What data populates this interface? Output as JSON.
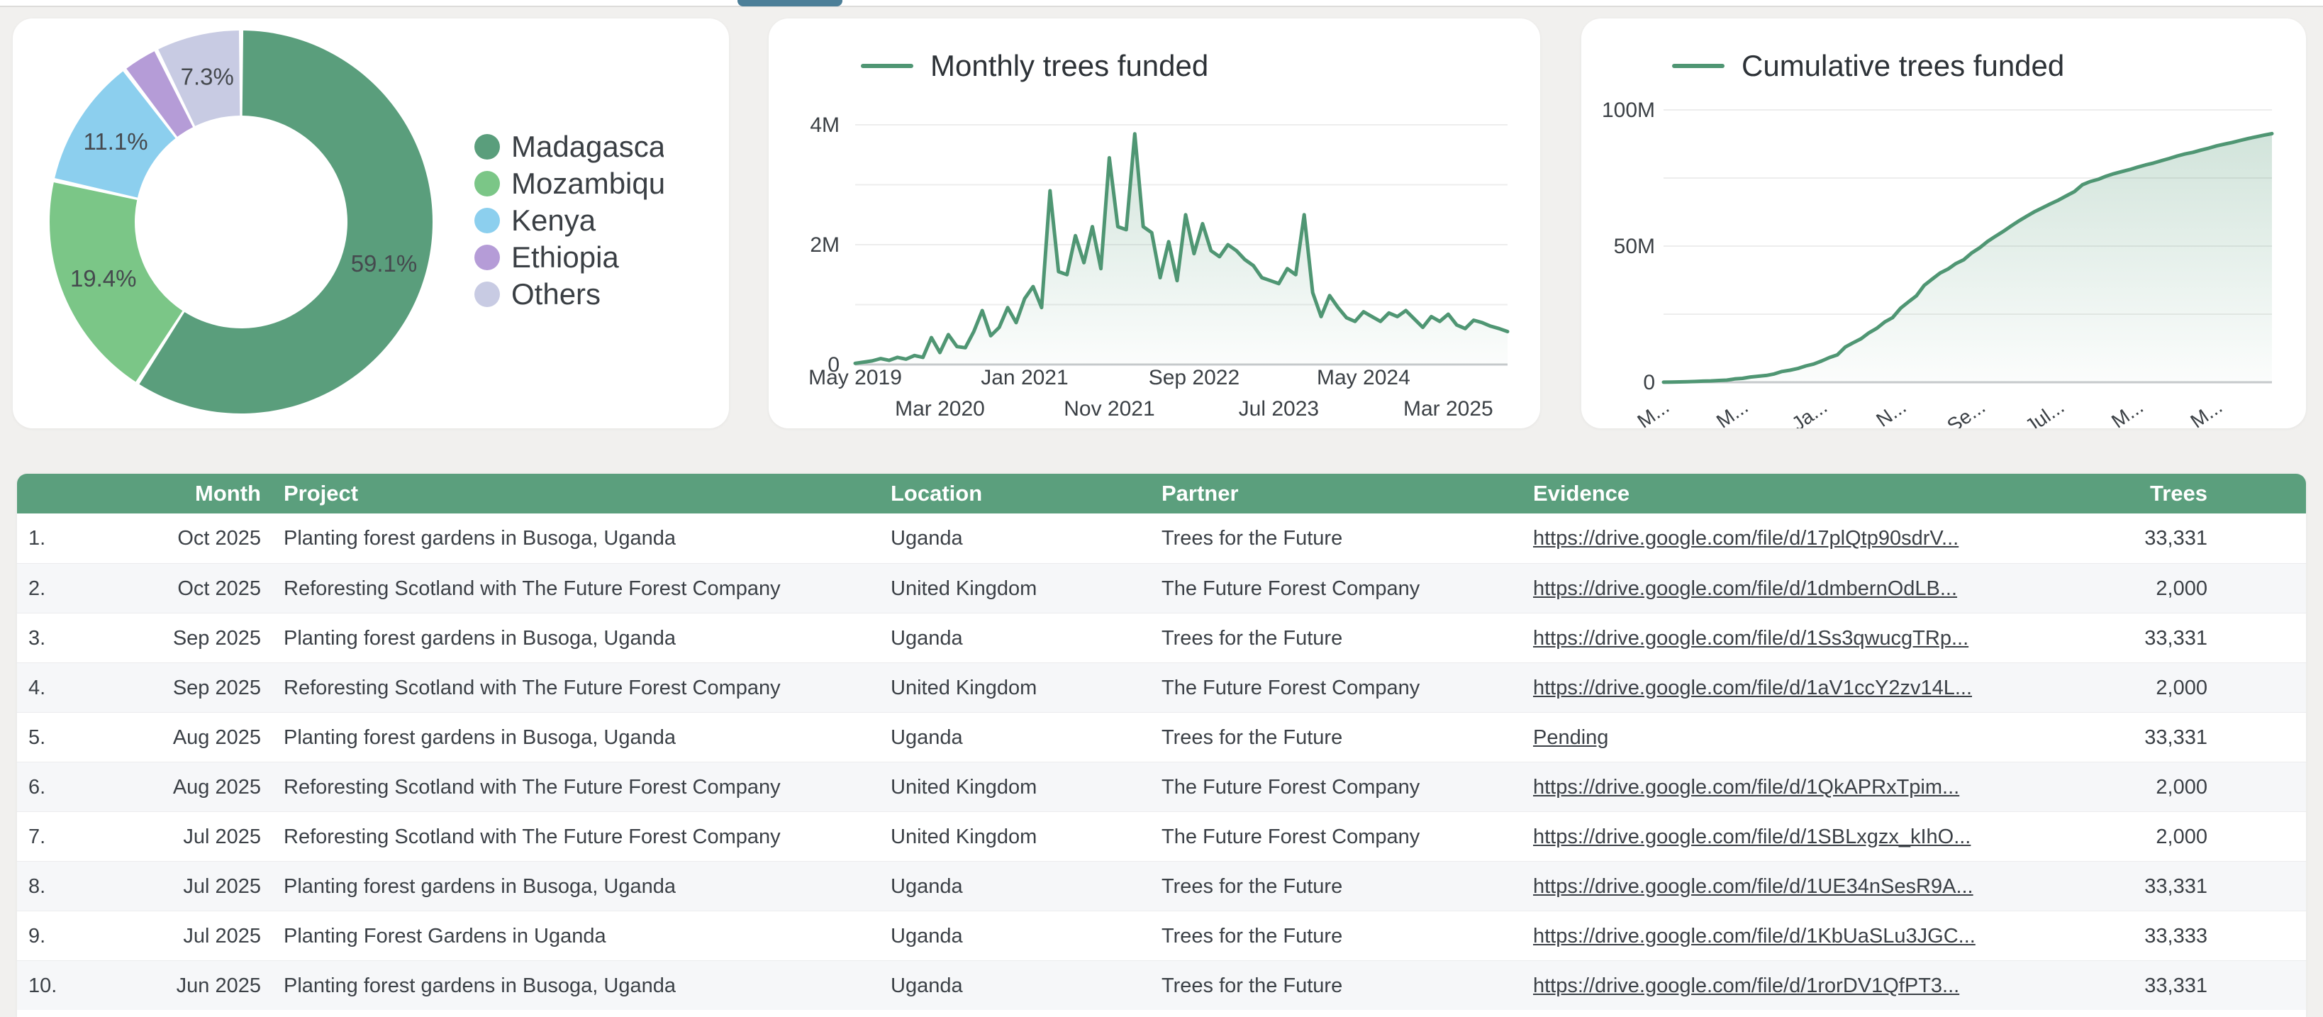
{
  "page": {
    "tab_indicator_color": "#4c7f98",
    "background": "#f1f0ee"
  },
  "colors": {
    "accent_green": "#4f9673",
    "table_header_green": "#5b9f7d",
    "grid_line": "#ededed",
    "axis_base_line": "#c7cacc",
    "axis_text": "#3b4045"
  },
  "chart_data": [
    {
      "type": "pie",
      "subtype": "donut",
      "legend_position": "right",
      "labels": [
        "Madagascar",
        "Mozambique",
        "Kenya",
        "Ethiopia",
        "Others"
      ],
      "values_pct": [
        59.1,
        19.4,
        11.1,
        3.1,
        7.3
      ],
      "slice_labels": [
        "59.1%",
        "19.4%",
        "11.1%",
        "",
        "7.3%"
      ],
      "colors": [
        "#5a9e7c",
        "#7bc687",
        "#8ccfee",
        "#b59cd7",
        "#c8cbe3"
      ]
    },
    {
      "type": "line",
      "title": "Monthly trees funded",
      "line_color": "#4f9673",
      "x_unit": "month",
      "x_start": "May 2019",
      "x_end": "Oct 2025",
      "ylim": [
        0,
        4000000
      ],
      "grid_step": 1000000,
      "yticks": [
        {
          "label": "0",
          "value_millions": 0
        },
        {
          "label": "2M",
          "value_millions": 2
        },
        {
          "label": "4M",
          "value_millions": 4
        }
      ],
      "xticks_row1": [
        {
          "label": "May 2019",
          "month_index": 0
        },
        {
          "label": "Jan 2021",
          "month_index": 20
        },
        {
          "label": "Sep 2022",
          "month_index": 40
        },
        {
          "label": "May 2024",
          "month_index": 60
        }
      ],
      "xticks_row2": [
        {
          "label": "Mar 2020",
          "month_index": 10
        },
        {
          "label": "Nov 2021",
          "month_index": 30
        },
        {
          "label": "Jul 2023",
          "month_index": 50
        },
        {
          "label": "Mar 2025",
          "month_index": 70
        }
      ],
      "values_millions": [
        0.02,
        0.04,
        0.06,
        0.1,
        0.07,
        0.12,
        0.09,
        0.15,
        0.12,
        0.45,
        0.2,
        0.5,
        0.3,
        0.28,
        0.55,
        0.9,
        0.48,
        0.62,
        0.95,
        0.7,
        1.1,
        1.3,
        0.95,
        2.9,
        1.55,
        1.5,
        2.15,
        1.7,
        2.3,
        1.6,
        3.45,
        2.3,
        2.25,
        3.85,
        2.3,
        2.2,
        1.45,
        2.05,
        1.4,
        2.5,
        1.85,
        2.35,
        1.9,
        1.8,
        2.0,
        1.9,
        1.75,
        1.65,
        1.45,
        1.4,
        1.35,
        1.6,
        1.5,
        2.5,
        1.2,
        0.8,
        1.15,
        0.95,
        0.78,
        0.72,
        0.88,
        0.8,
        0.72,
        0.86,
        0.8,
        0.9,
        0.76,
        0.62,
        0.8,
        0.72,
        0.84,
        0.66,
        0.6,
        0.74,
        0.7,
        0.64,
        0.6,
        0.55
      ]
    },
    {
      "type": "area",
      "title": "Cumulative trees funded",
      "line_color": "#4f9673",
      "derived_from": "cumulative sum of monthly series",
      "ylim": [
        0,
        100000000
      ],
      "grid_step": 25000000,
      "end_value_millions": 91.3,
      "yticks": [
        {
          "label": "0",
          "value_millions": 0
        },
        {
          "label": "50M",
          "value_millions": 50
        },
        {
          "label": "100M",
          "value_millions": 100
        }
      ],
      "xtick_labels_truncated": [
        "M...",
        "M...",
        "Ja...",
        "N...",
        "Se...",
        "Jul...",
        "M...",
        "M..."
      ],
      "xtick_month_indices": [
        0,
        10,
        20,
        30,
        40,
        50,
        60,
        70
      ]
    }
  ],
  "table": {
    "headers": {
      "num": "",
      "month": "Month",
      "project": "Project",
      "location": "Location",
      "partner": "Partner",
      "evidence": "Evidence",
      "trees": "Trees"
    },
    "rows": [
      {
        "num": "1.",
        "month": "Oct 2025",
        "project": "Planting forest gardens in Busoga, Uganda",
        "location": "Uganda",
        "partner": "Trees for the Future",
        "evidence": "https://drive.google.com/file/d/17plQtp90sdrV...",
        "trees": "33,331"
      },
      {
        "num": "2.",
        "month": "Oct 2025",
        "project": "Reforesting Scotland with The Future Forest Company",
        "location": "United Kingdom",
        "partner": "The Future Forest Company",
        "evidence": "https://drive.google.com/file/d/1dmbernOdLB...",
        "trees": "2,000"
      },
      {
        "num": "3.",
        "month": "Sep 2025",
        "project": "Planting forest gardens in Busoga, Uganda",
        "location": "Uganda",
        "partner": "Trees for the Future",
        "evidence": "https://drive.google.com/file/d/1Ss3qwucgTRp...",
        "trees": "33,331"
      },
      {
        "num": "4.",
        "month": "Sep 2025",
        "project": "Reforesting Scotland with The Future Forest Company",
        "location": "United Kingdom",
        "partner": "The Future Forest Company",
        "evidence": "https://drive.google.com/file/d/1aV1ccY2zv14L...",
        "trees": "2,000"
      },
      {
        "num": "5.",
        "month": "Aug 2025",
        "project": "Planting forest gardens in Busoga, Uganda",
        "location": "Uganda",
        "partner": "Trees for the Future",
        "evidence": "Pending",
        "trees": "33,331"
      },
      {
        "num": "6.",
        "month": "Aug 2025",
        "project": "Reforesting Scotland with The Future Forest Company",
        "location": "United Kingdom",
        "partner": "The Future Forest Company",
        "evidence": "https://drive.google.com/file/d/1QkAPRxTpim...",
        "trees": "2,000"
      },
      {
        "num": "7.",
        "month": "Jul 2025",
        "project": "Reforesting Scotland with The Future Forest Company",
        "location": "United Kingdom",
        "partner": "The Future Forest Company",
        "evidence": "https://drive.google.com/file/d/1SBLxgzx_kIhO...",
        "trees": "2,000"
      },
      {
        "num": "8.",
        "month": "Jul 2025",
        "project": "Planting forest gardens in Busoga, Uganda",
        "location": "Uganda",
        "partner": "Trees for the Future",
        "evidence": "https://drive.google.com/file/d/1UE34nSesR9A...",
        "trees": "33,331"
      },
      {
        "num": "9.",
        "month": "Jul 2025",
        "project": "Planting Forest Gardens in Uganda",
        "location": "Uganda",
        "partner": "Trees for the Future",
        "evidence": "https://drive.google.com/file/d/1KbUaSLu3JGC...",
        "trees": "33,333"
      },
      {
        "num": "10.",
        "month": "Jun 2025",
        "project": "Planting forest gardens in Busoga, Uganda",
        "location": "Uganda",
        "partner": "Trees for the Future",
        "evidence": "https://drive.google.com/file/d/1rorDV1QfPT3...",
        "trees": "33,331"
      }
    ]
  }
}
